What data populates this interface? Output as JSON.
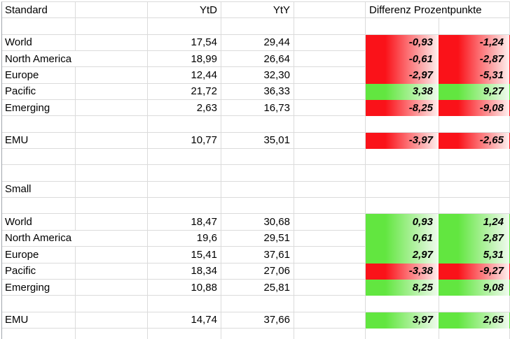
{
  "colors": {
    "grid_line": "#DBDBDB",
    "sheet_edge_line": "#A0A6AD",
    "text": "#000000",
    "negative_solid": "#FA1219",
    "negative_fade": "#FEF0EF",
    "positive_solid": "#62E640",
    "positive_fade": "#F1FBEF"
  },
  "rows": [
    {
      "type": "header",
      "a": "Standard",
      "c": "YtD",
      "d": "YtY",
      "f": "Differenz Prozentpunkte"
    },
    {
      "type": "empty"
    },
    {
      "type": "data",
      "a": "World",
      "c": "17,54",
      "d": "29,44",
      "f": "-0,93",
      "g": "-1,24"
    },
    {
      "type": "data",
      "a": "North America",
      "wide_a": true,
      "c": "18,99",
      "d": "26,64",
      "f": "-0,61",
      "g": "-2,87"
    },
    {
      "type": "data",
      "a": "Europe",
      "c": "12,44",
      "d": "32,30",
      "f": "-2,97",
      "g": "-5,31"
    },
    {
      "type": "data",
      "a": "Pacific",
      "c": "21,72",
      "d": "36,33",
      "f": "3,38",
      "g": "9,27"
    },
    {
      "type": "data",
      "a": "Emerging",
      "c": "2,63",
      "d": "16,73",
      "f": "-8,25",
      "g": "-9,08"
    },
    {
      "type": "empty"
    },
    {
      "type": "data",
      "a": "EMU",
      "c": "10,77",
      "d": "35,01",
      "f": "-3,97",
      "g": "-2,65"
    },
    {
      "type": "empty"
    },
    {
      "type": "empty"
    },
    {
      "type": "section",
      "a": "Small"
    },
    {
      "type": "empty"
    },
    {
      "type": "data",
      "a": "World",
      "c": "18,47",
      "d": "30,68",
      "f": "0,93",
      "g": "1,24"
    },
    {
      "type": "data",
      "a": "North America",
      "wide_a": true,
      "c": "19,6",
      "d": "29,51",
      "f": "0,61",
      "g": "2,87"
    },
    {
      "type": "data",
      "a": "Europe",
      "c": "15,41",
      "d": "37,61",
      "f": "2,97",
      "g": "5,31"
    },
    {
      "type": "data",
      "a": "Pacific",
      "c": "18,34",
      "d": "27,06",
      "f": "-3,38",
      "g": "-9,27"
    },
    {
      "type": "data",
      "a": "Emerging",
      "c": "10,88",
      "d": "25,81",
      "f": "8,25",
      "g": "9,08"
    },
    {
      "type": "empty"
    },
    {
      "type": "data",
      "a": "EMU",
      "c": "14,74",
      "d": "37,66",
      "f": "3,97",
      "g": "2,65"
    },
    {
      "type": "empty"
    }
  ]
}
